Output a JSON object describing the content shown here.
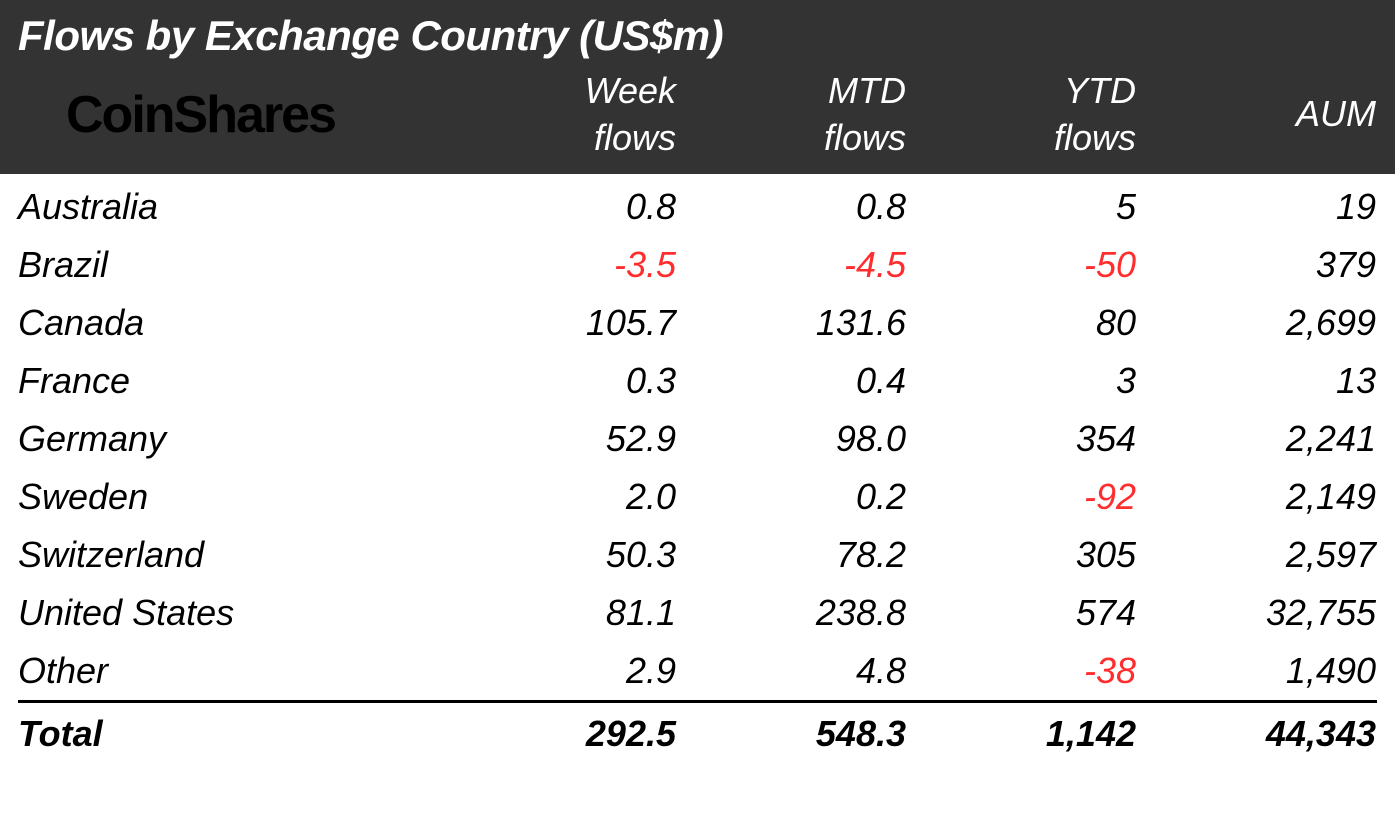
{
  "title": "Flows by Exchange Country (US$m)",
  "logo_text": "CoinShares",
  "columns": {
    "week": "Week\nflows",
    "mtd": "MTD\nflows",
    "ytd": "YTD\nflows",
    "aum": "AUM"
  },
  "styling": {
    "header_bg": "#333333",
    "header_text": "#ffffff",
    "body_bg": "#ffffff",
    "positive_text": "#000000",
    "negative_text": "#ff2d2d",
    "logo_color": "#000000",
    "title_fontsize": 42,
    "cell_fontsize": 36,
    "font_style": "italic",
    "total_border": "3px solid #000000",
    "col_widths": {
      "name": 430,
      "week": 240,
      "mtd": 230,
      "ytd": 230,
      "aum": 240
    },
    "col_align": {
      "name": "left",
      "week": "right",
      "mtd": "right",
      "ytd": "right",
      "aum": "right"
    }
  },
  "rows": [
    {
      "name": "Australia",
      "week": "0.8",
      "week_neg": false,
      "mtd": "0.8",
      "mtd_neg": false,
      "ytd": "5",
      "ytd_neg": false,
      "aum": "19"
    },
    {
      "name": "Brazil",
      "week": "-3.5",
      "week_neg": true,
      "mtd": "-4.5",
      "mtd_neg": true,
      "ytd": "-50",
      "ytd_neg": true,
      "aum": "379"
    },
    {
      "name": "Canada",
      "week": "105.7",
      "week_neg": false,
      "mtd": "131.6",
      "mtd_neg": false,
      "ytd": "80",
      "ytd_neg": false,
      "aum": "2,699"
    },
    {
      "name": "France",
      "week": "0.3",
      "week_neg": false,
      "mtd": "0.4",
      "mtd_neg": false,
      "ytd": "3",
      "ytd_neg": false,
      "aum": "13"
    },
    {
      "name": "Germany",
      "week": "52.9",
      "week_neg": false,
      "mtd": "98.0",
      "mtd_neg": false,
      "ytd": "354",
      "ytd_neg": false,
      "aum": "2,241"
    },
    {
      "name": "Sweden",
      "week": "2.0",
      "week_neg": false,
      "mtd": "0.2",
      "mtd_neg": false,
      "ytd": "-92",
      "ytd_neg": true,
      "aum": "2,149"
    },
    {
      "name": "Switzerland",
      "week": "50.3",
      "week_neg": false,
      "mtd": "78.2",
      "mtd_neg": false,
      "ytd": "305",
      "ytd_neg": false,
      "aum": "2,597"
    },
    {
      "name": "United States",
      "week": "81.1",
      "week_neg": false,
      "mtd": "238.8",
      "mtd_neg": false,
      "ytd": "574",
      "ytd_neg": false,
      "aum": "32,755"
    },
    {
      "name": "Other",
      "week": "2.9",
      "week_neg": false,
      "mtd": "4.8",
      "mtd_neg": false,
      "ytd": "-38",
      "ytd_neg": true,
      "aum": "1,490"
    }
  ],
  "total": {
    "name": "Total",
    "week": "292.5",
    "mtd": "548.3",
    "ytd": "1,142",
    "aum": "44,343"
  }
}
